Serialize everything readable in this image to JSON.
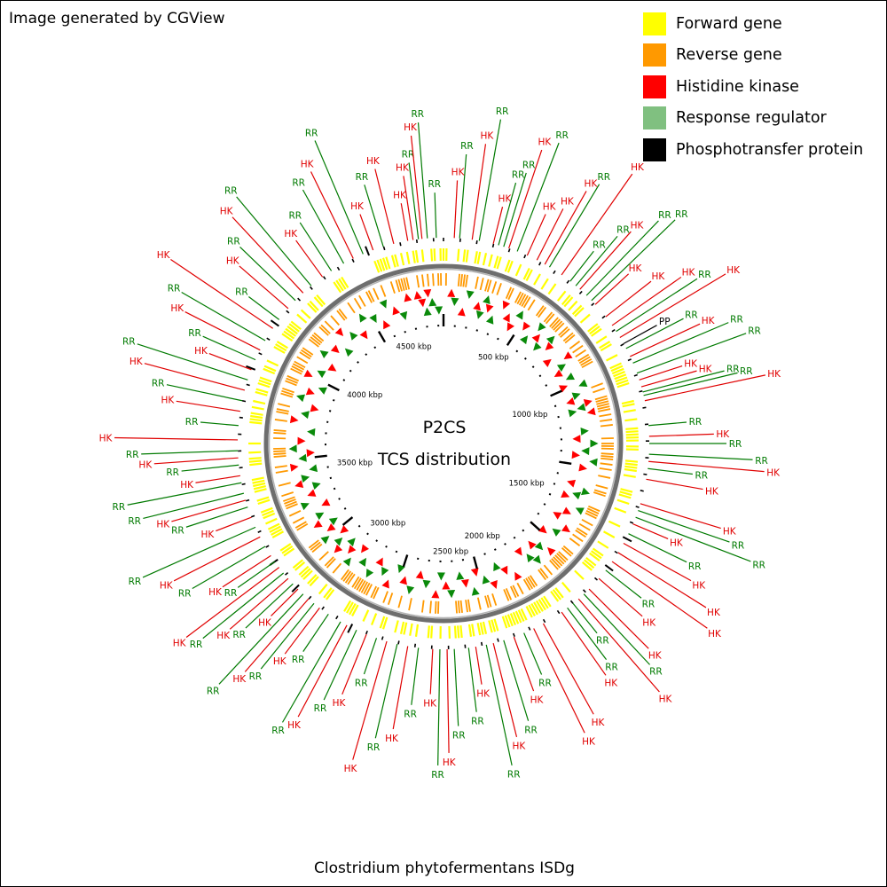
{
  "credit": "Image generated by CGView",
  "footer": "Clostridium phytofermentans ISDg",
  "center": {
    "line1": "P2CS",
    "line2": "TCS distribution"
  },
  "legend": [
    {
      "label": "Forward gene",
      "color": "#FFFF00"
    },
    {
      "label": "Reverse gene",
      "color": "#FF9900"
    },
    {
      "label": "Histidine kinase",
      "color": "#FF0000"
    },
    {
      "label": "Response regulator",
      "color": "#80C080"
    },
    {
      "label": "Phosphotransfer protein",
      "color": "#000000"
    }
  ],
  "colors": {
    "hk": "#E00000",
    "rr": "#007A00",
    "pp": "#000000",
    "forward": "#FFFF00",
    "reverse": "#FF9900",
    "backbone": "#6E6E6E"
  },
  "scale_labels": [
    "500 kbp",
    "1000 kbp",
    "1500 kbp",
    "2000 kbp",
    "2500 kbp",
    "3000 kbp",
    "3500 kbp",
    "4000 kbp",
    "4500 kbp"
  ],
  "features": [
    {
      "type": "HK",
      "deg": -10
    },
    {
      "type": "HK",
      "deg": -8.5
    },
    {
      "type": "RR",
      "deg": -7
    },
    {
      "type": "HK",
      "deg": -6
    },
    {
      "type": "RR",
      "deg": -4.5
    },
    {
      "type": "RR",
      "deg": -2
    },
    {
      "type": "HK",
      "deg": 3
    },
    {
      "type": "RR",
      "deg": 4.5
    },
    {
      "type": "HK",
      "deg": 8
    },
    {
      "type": "RR",
      "deg": 10
    },
    {
      "type": "HK",
      "deg": 14
    },
    {
      "type": "RR",
      "deg": 15.5
    },
    {
      "type": "RR",
      "deg": 17
    },
    {
      "type": "HK",
      "deg": 18.5
    },
    {
      "type": "RR",
      "deg": 21
    },
    {
      "type": "HK",
      "deg": 24
    },
    {
      "type": "HK",
      "deg": 27
    },
    {
      "type": "HK",
      "deg": 29.5
    },
    {
      "type": "RR",
      "deg": 31
    },
    {
      "type": "HK",
      "deg": 35
    },
    {
      "type": "RR",
      "deg": 38
    },
    {
      "type": "RR",
      "deg": 40
    },
    {
      "type": "HK",
      "deg": 41.5
    },
    {
      "type": "RR",
      "deg": 44
    },
    {
      "type": "RR",
      "deg": 46
    },
    {
      "type": "HK",
      "deg": 47.5
    },
    {
      "type": "HK",
      "deg": 52
    },
    {
      "type": "HK",
      "deg": 55
    },
    {
      "type": "RR",
      "deg": 57
    },
    {
      "type": "HK",
      "deg": 59
    },
    {
      "type": "PP",
      "deg": 61
    },
    {
      "type": "RR",
      "deg": 62.5
    },
    {
      "type": "HK",
      "deg": 65
    },
    {
      "type": "RR",
      "deg": 67
    },
    {
      "type": "RR",
      "deg": 70
    },
    {
      "type": "HK",
      "deg": 72
    },
    {
      "type": "HK",
      "deg": 74
    },
    {
      "type": "RR",
      "deg": 75.5
    },
    {
      "type": "RR",
      "deg": 76.5
    },
    {
      "type": "HK",
      "deg": 78
    },
    {
      "type": "RR",
      "deg": 85
    },
    {
      "type": "HK",
      "deg": 88
    },
    {
      "type": "RR",
      "deg": 90
    },
    {
      "type": "RR",
      "deg": 93
    },
    {
      "type": "HK",
      "deg": 95
    },
    {
      "type": "RR",
      "deg": 97
    },
    {
      "type": "HK",
      "deg": 100
    },
    {
      "type": "HK",
      "deg": 107
    },
    {
      "type": "RR",
      "deg": 109
    },
    {
      "type": "RR",
      "deg": 111
    },
    {
      "type": "HK",
      "deg": 113
    },
    {
      "type": "RR",
      "deg": 116
    },
    {
      "type": "HK",
      "deg": 119
    },
    {
      "type": "HK",
      "deg": 122
    },
    {
      "type": "HK",
      "deg": 125
    },
    {
      "type": "RR",
      "deg": 128
    },
    {
      "type": "HK",
      "deg": 131
    },
    {
      "type": "HK",
      "deg": 135
    },
    {
      "type": "RR",
      "deg": 137
    },
    {
      "type": "HK",
      "deg": 139
    },
    {
      "type": "RR",
      "deg": 141
    },
    {
      "type": "RR",
      "deg": 143
    },
    {
      "type": "HK",
      "deg": 145
    },
    {
      "type": "HK",
      "deg": 151
    },
    {
      "type": "HK",
      "deg": 154
    },
    {
      "type": "RR",
      "deg": 157
    },
    {
      "type": "HK",
      "deg": 160
    },
    {
      "type": "RR",
      "deg": 163
    },
    {
      "type": "HK",
      "deg": 166
    },
    {
      "type": "RR",
      "deg": 168
    },
    {
      "type": "HK",
      "deg": 171
    },
    {
      "type": "RR",
      "deg": 173
    },
    {
      "type": "RR",
      "deg": 177
    },
    {
      "type": "HK",
      "deg": 179
    },
    {
      "type": "RR",
      "deg": 181
    },
    {
      "type": "HK",
      "deg": 183
    },
    {
      "type": "RR",
      "deg": 187
    },
    {
      "type": "HK",
      "deg": 190
    },
    {
      "type": "RR",
      "deg": 193
    },
    {
      "type": "HK",
      "deg": 196
    },
    {
      "type": "RR",
      "deg": 199
    },
    {
      "type": "HK",
      "deg": 202
    },
    {
      "type": "RR",
      "deg": 205
    },
    {
      "type": "HK",
      "deg": 208
    },
    {
      "type": "RR",
      "deg": 210
    },
    {
      "type": "RR",
      "deg": 214
    },
    {
      "type": "HK",
      "deg": 217
    },
    {
      "type": "RR",
      "deg": 219
    },
    {
      "type": "HK",
      "deg": 221
    },
    {
      "type": "RR",
      "deg": 223
    },
    {
      "type": "HK",
      "deg": 225
    },
    {
      "type": "RR",
      "deg": 227
    },
    {
      "type": "HK",
      "deg": 229
    },
    {
      "type": "RR",
      "deg": 231
    },
    {
      "type": "HK",
      "deg": 233
    },
    {
      "type": "RR",
      "deg": 235
    },
    {
      "type": "HK",
      "deg": 237
    },
    {
      "type": "RR",
      "deg": 240
    },
    {
      "type": "HK",
      "deg": 243
    },
    {
      "type": "RR",
      "deg": 246
    },
    {
      "type": "HK",
      "deg": 249
    },
    {
      "type": "RR",
      "deg": 252
    },
    {
      "type": "HK",
      "deg": 254
    },
    {
      "type": "RR",
      "deg": 256
    },
    {
      "type": "RR",
      "deg": 259
    },
    {
      "type": "HK",
      "deg": 261
    },
    {
      "type": "RR",
      "deg": 264
    },
    {
      "type": "HK",
      "deg": 266
    },
    {
      "type": "RR",
      "deg": 268
    },
    {
      "type": "HK",
      "deg": 271
    },
    {
      "type": "RR",
      "deg": 275
    },
    {
      "type": "HK",
      "deg": 279
    },
    {
      "type": "RR",
      "deg": 282
    },
    {
      "type": "HK",
      "deg": 285
    },
    {
      "type": "RR",
      "deg": 288
    },
    {
      "type": "HK",
      "deg": 291
    },
    {
      "type": "RR",
      "deg": 294
    },
    {
      "type": "HK",
      "deg": 297
    },
    {
      "type": "RR",
      "deg": 300
    },
    {
      "type": "HK",
      "deg": 304
    },
    {
      "type": "RR",
      "deg": 307
    },
    {
      "type": "HK",
      "deg": 311
    },
    {
      "type": "RR",
      "deg": 314
    },
    {
      "type": "HK",
      "deg": 317
    },
    {
      "type": "RR",
      "deg": 320
    },
    {
      "type": "HK",
      "deg": 324
    },
    {
      "type": "RR",
      "deg": 327
    },
    {
      "type": "RR",
      "deg": 331
    },
    {
      "type": "HK",
      "deg": 334
    },
    {
      "type": "RR",
      "deg": 337
    },
    {
      "type": "HK",
      "deg": 340
    },
    {
      "type": "RR",
      "deg": 343
    },
    {
      "type": "HK",
      "deg": 346
    }
  ]
}
